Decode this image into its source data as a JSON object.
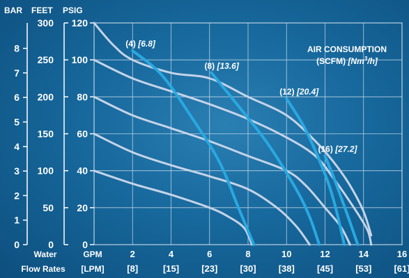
{
  "chart_data": {
    "type": "line",
    "title_line1": "AIR CONSUMPTION",
    "title_line2_prefix": "(SCFM)",
    "title_line2_unit": "[Nm",
    "title_line2_sup": "3",
    "title_line2_end": "/h]",
    "axis_headers": {
      "bar": "BAR",
      "feet": "FEET",
      "psig": "PSIG"
    },
    "x_headers": {
      "gpm": "GPM",
      "lpm": "[LPM]",
      "water_line1": "Water",
      "water_line2": "Flow Rates"
    },
    "xlim": [
      0,
      16
    ],
    "ylim": [
      0,
      120
    ],
    "x_ticks": [
      {
        "gpm": "0",
        "lpm": "",
        "value": 0
      },
      {
        "gpm": "2",
        "lpm": "[8]",
        "value": 2
      },
      {
        "gpm": "4",
        "lpm": "[15]",
        "value": 4
      },
      {
        "gpm": "6",
        "lpm": "[23]",
        "value": 6
      },
      {
        "gpm": "8",
        "lpm": "[30]",
        "value": 8
      },
      {
        "gpm": "10",
        "lpm": "[38]",
        "value": 10
      },
      {
        "gpm": "12",
        "lpm": "[45]",
        "value": 12
      },
      {
        "gpm": "14",
        "lpm": "[53]",
        "value": 14
      },
      {
        "gpm": "16",
        "lpm": "[61]",
        "value": 16
      }
    ],
    "psig_ticks": [
      "0",
      "20",
      "40",
      "60",
      "80",
      "100",
      "120"
    ],
    "feet_ticks": [
      "0",
      "50",
      "100",
      "150",
      "200",
      "250",
      "300"
    ],
    "bar_ticks": [
      "0",
      "1",
      "2",
      "3",
      "4",
      "5",
      "6",
      "7",
      "8"
    ],
    "pressure_curves": [
      {
        "points": [
          [
            0,
            40
          ],
          [
            2,
            33
          ],
          [
            4,
            27
          ],
          [
            6,
            20
          ],
          [
            7,
            15
          ],
          [
            7.8,
            9
          ],
          [
            8.2,
            0
          ]
        ]
      },
      {
        "points": [
          [
            0,
            60
          ],
          [
            2,
            50
          ],
          [
            4,
            43
          ],
          [
            6,
            37
          ],
          [
            8,
            30
          ],
          [
            9.5,
            20
          ],
          [
            10.5,
            10
          ],
          [
            11.2,
            0
          ]
        ]
      },
      {
        "points": [
          [
            0,
            80
          ],
          [
            2,
            70
          ],
          [
            4,
            63
          ],
          [
            6,
            56
          ],
          [
            8,
            48
          ],
          [
            10,
            40
          ],
          [
            11,
            32
          ],
          [
            12,
            20
          ],
          [
            12.8,
            10
          ],
          [
            13.3,
            0
          ]
        ]
      },
      {
        "points": [
          [
            0,
            100
          ],
          [
            2,
            90
          ],
          [
            4,
            83
          ],
          [
            6,
            76
          ],
          [
            8,
            68
          ],
          [
            10,
            58
          ],
          [
            11.5,
            48
          ],
          [
            12.5,
            35
          ],
          [
            13.5,
            20
          ],
          [
            14.2,
            8
          ],
          [
            14.4,
            0
          ]
        ]
      },
      {
        "points": [
          [
            0,
            120
          ],
          [
            1,
            108
          ],
          [
            2,
            100
          ],
          [
            4,
            93
          ],
          [
            6,
            90
          ],
          [
            8,
            80
          ],
          [
            10,
            70
          ],
          [
            11.5,
            56
          ],
          [
            12.5,
            44
          ],
          [
            13.3,
            32
          ],
          [
            14,
            18
          ],
          [
            14.4,
            5
          ]
        ]
      }
    ],
    "air_curves": [
      {
        "label": "(4)",
        "metric": "[6.8]",
        "points": [
          [
            2,
            105
          ],
          [
            3.5,
            92
          ],
          [
            5,
            70
          ],
          [
            6.5,
            45
          ],
          [
            7.5,
            20
          ],
          [
            8.3,
            0
          ]
        ]
      },
      {
        "label": "(8)",
        "metric": "[13.6]",
        "points": [
          [
            6.1,
            93
          ],
          [
            7.5,
            75
          ],
          [
            9,
            55
          ],
          [
            10.5,
            30
          ],
          [
            11.2,
            15
          ],
          [
            11.7,
            0
          ]
        ]
      },
      {
        "label": "(12)",
        "metric": "[20.4]",
        "points": [
          [
            10,
            79
          ],
          [
            11,
            62
          ],
          [
            12,
            38
          ],
          [
            12.5,
            22
          ],
          [
            13,
            0
          ]
        ]
      },
      {
        "label": "(16)",
        "metric": "[27.2]",
        "points": [
          [
            12,
            48
          ],
          [
            12.5,
            35
          ],
          [
            13.2,
            15
          ],
          [
            13.7,
            0
          ]
        ]
      }
    ],
    "colors": {
      "pressure_curve": "#c6d4e8",
      "air_curve": "#29a8e0",
      "grid": "#dfe8f2",
      "text": "#ffffff"
    },
    "grid": true
  }
}
